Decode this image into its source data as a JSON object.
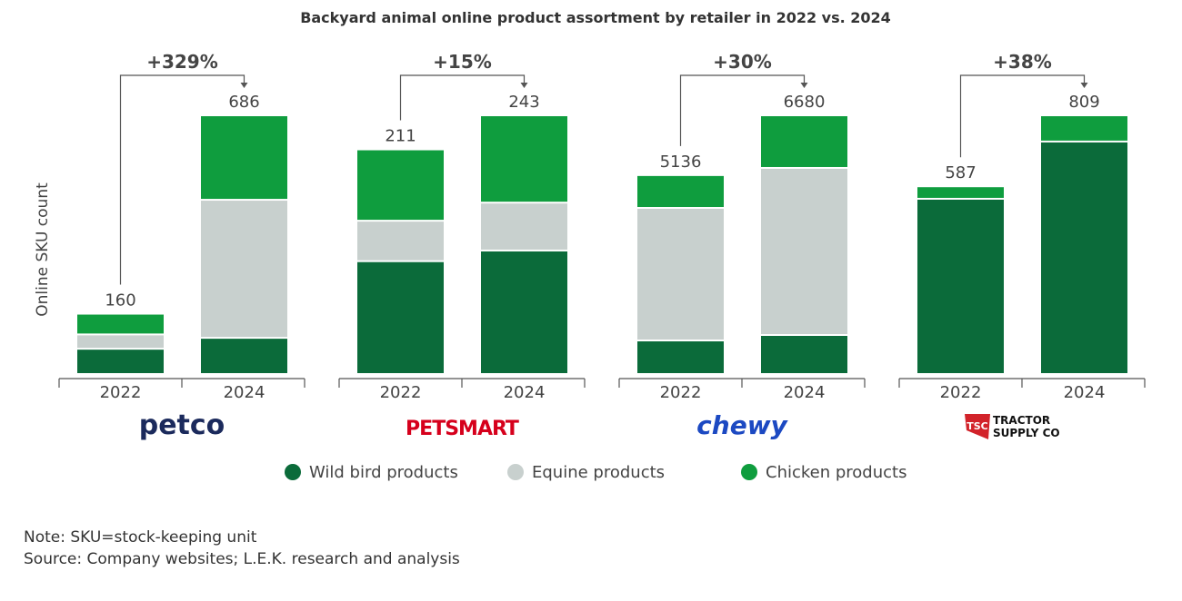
{
  "chart_data": {
    "type": "bar",
    "stacked": true,
    "title": "Backyard animal online product assortment by retailer in 2022 vs. 2024",
    "ylabel": "Online SKU count",
    "xlabel": "",
    "grid": false,
    "legend_position": "bottom",
    "series_names": [
      "Wild bird products",
      "Equine products",
      "Chicken products"
    ],
    "colors": {
      "Wild bird products": "#0b6b3a",
      "Equine products": "#c8d0ce",
      "Chicken products": "#0f9d3e"
    },
    "groups": [
      {
        "retailer": "petco",
        "change": "+329%",
        "bars": [
          {
            "year": "2022",
            "total": 160,
            "values": [
              67,
              38,
              55
            ]
          },
          {
            "year": "2024",
            "total": 686,
            "values": [
              96,
              366,
              224
            ]
          }
        ]
      },
      {
        "retailer": "PETSMART",
        "change": "+15%",
        "bars": [
          {
            "year": "2022",
            "total": 211,
            "values": [
              106,
              38,
              67
            ]
          },
          {
            "year": "2024",
            "total": 243,
            "values": [
              116,
              45,
              82
            ]
          }
        ]
      },
      {
        "retailer": "chewy",
        "change": "+30%",
        "bars": [
          {
            "year": "2022",
            "total": 5136,
            "values": [
              867,
              3422,
              847
            ]
          },
          {
            "year": "2024",
            "total": 6680,
            "values": [
              1008,
              4313,
              1359
            ]
          }
        ]
      },
      {
        "retailer": "TRACTOR SUPPLY CO",
        "change": "+38%",
        "bars": [
          {
            "year": "2022",
            "total": 587,
            "values": [
              548,
              0,
              39
            ]
          },
          {
            "year": "2024",
            "total": 809,
            "values": [
              727,
              0,
              82
            ]
          }
        ]
      }
    ]
  },
  "notes": {
    "note": "Note: SKU=stock-keeping unit",
    "source": "Source: Company websites; L.E.K. research and analysis"
  }
}
